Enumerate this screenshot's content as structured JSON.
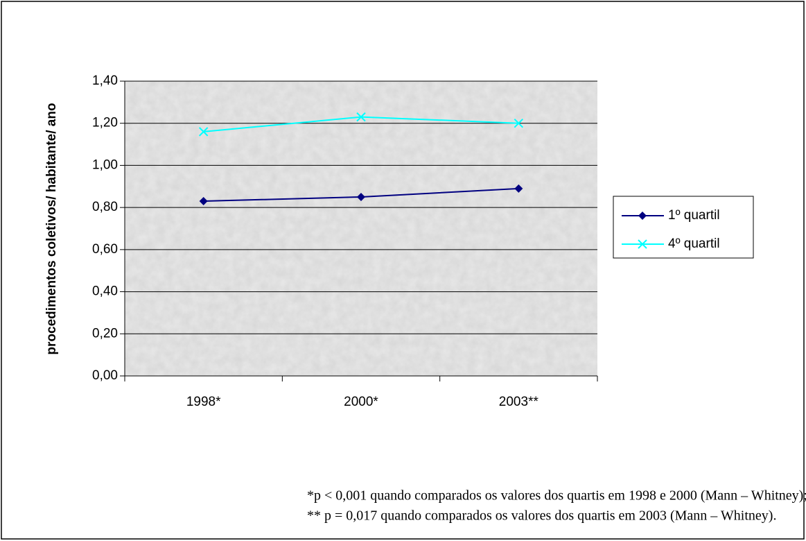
{
  "chart_data": {
    "type": "line",
    "y_axis_label": "procedimentos coletivos/ habitante/ ano",
    "categories": [
      "1998*",
      "2000*",
      "2003**"
    ],
    "series": [
      {
        "name": "1º quartil",
        "color": "#000080",
        "marker": "diamond",
        "values": [
          0.83,
          0.85,
          0.89
        ]
      },
      {
        "name": "4º quartil",
        "color": "#00ffff",
        "marker": "x",
        "values": [
          1.16,
          1.23,
          1.2
        ]
      }
    ],
    "ylim": [
      0,
      1.4
    ],
    "yticks": [
      {
        "value": 0,
        "label": "0,00"
      },
      {
        "value": 0.2,
        "label": "0,20"
      },
      {
        "value": 0.4,
        "label": "0,40"
      },
      {
        "value": 0.6,
        "label": "0,60"
      },
      {
        "value": 0.8,
        "label": "0,80"
      },
      {
        "value": 1.0,
        "label": "1,00"
      },
      {
        "value": 1.2,
        "label": "1,20"
      },
      {
        "value": 1.4,
        "label": "1,40"
      }
    ],
    "grid": true,
    "legend": "right",
    "footnotes": [
      "*p < 0,001 quando comparados os valores dos quartis em 1998 e 2000 (Mann – Whitney);",
      "** p = 0,017 quando comparados os valores dos quartis em 2003 (Mann – Whitney)."
    ]
  }
}
